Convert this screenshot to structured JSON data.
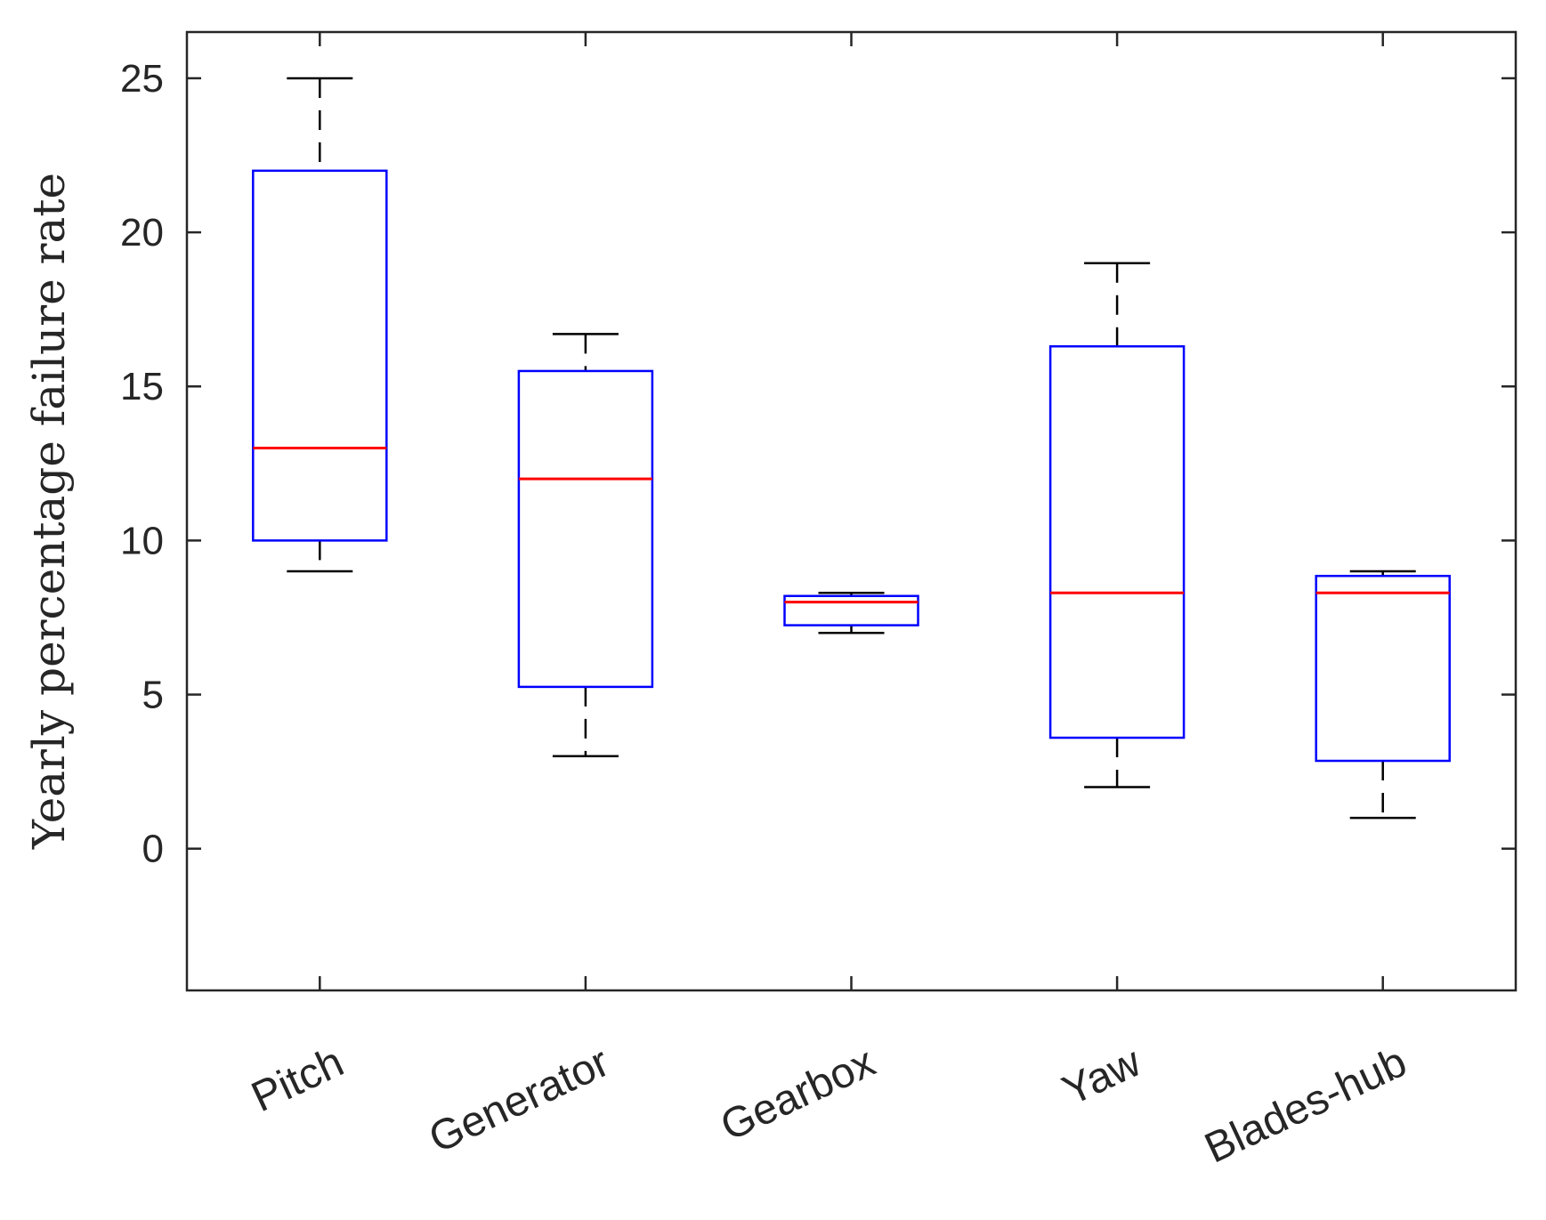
{
  "chart_data": {
    "type": "box",
    "title": "",
    "xlabel": "",
    "ylabel": "Yearly percentage failure rate",
    "ylim": [
      -4.6,
      26.5
    ],
    "yticks": [
      0,
      5,
      10,
      15,
      20,
      25
    ],
    "categories": [
      "Pitch",
      "Generator",
      "Gearbox",
      "Yaw",
      "Blades-hub"
    ],
    "boxes": [
      {
        "name": "Pitch",
        "whisker_low": 9,
        "q1": 10,
        "median": 13,
        "q3": 22,
        "whisker_high": 25
      },
      {
        "name": "Generator",
        "whisker_low": 3,
        "q1": 5.25,
        "median": 12,
        "q3": 15.5,
        "whisker_high": 16.7
      },
      {
        "name": "Gearbox",
        "whisker_low": 7,
        "q1": 7.25,
        "median": 8,
        "q3": 8.2,
        "whisker_high": 8.3
      },
      {
        "name": "Yaw",
        "whisker_low": 2,
        "q1": 3.6,
        "median": 8.3,
        "q3": 16.3,
        "whisker_high": 19
      },
      {
        "name": "Blades-hub",
        "whisker_low": 1,
        "q1": 2.85,
        "median": 8.3,
        "q3": 8.85,
        "whisker_high": 9
      }
    ],
    "colors": {
      "box": "#0000ff",
      "median": "#ff0000",
      "whisker": "#000000",
      "axis": "#262626"
    }
  }
}
